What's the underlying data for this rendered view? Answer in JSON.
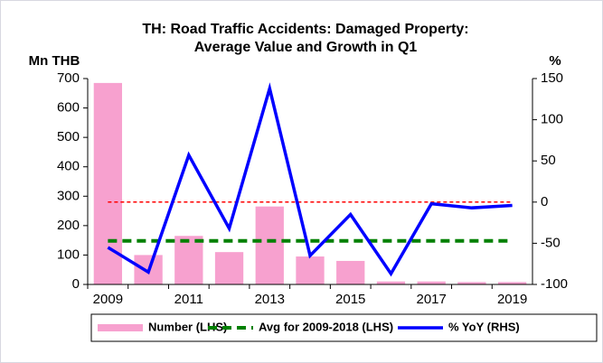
{
  "chart_data": {
    "type": "bar",
    "title": "TH: Road Traffic Accidents: Damaged Property:",
    "subtitle": "Average Value and Growth in Q1",
    "ylabel": "Mn THB",
    "y2label": "%",
    "categories": [
      "2009",
      null,
      "2011",
      null,
      "2013",
      null,
      "2015",
      null,
      "2017",
      null,
      "2019"
    ],
    "series": [
      {
        "name": "Number (LHS)",
        "type": "bar",
        "color": "#f7a1cf",
        "values": [
          685,
          100,
          165,
          110,
          265,
          95,
          80,
          10,
          10,
          8,
          8
        ]
      },
      {
        "name": "Avg for 2009-2018 (LHS)",
        "type": "line",
        "dashed": true,
        "color": "#008000",
        "values": [
          148,
          148,
          148,
          148,
          148,
          148,
          148,
          148,
          148,
          148,
          148
        ]
      },
      {
        "name": "% YoY (RHS)",
        "type": "line",
        "axis": "y2",
        "color": "#0000ff",
        "values": [
          -55,
          -85,
          57,
          -32,
          138,
          -65,
          -15,
          -87,
          -2,
          -7,
          -4
        ]
      }
    ],
    "reference_lines": [
      {
        "axis": "y2",
        "value": 0,
        "color": "#ff0000"
      }
    ],
    "ylim": [
      0,
      700
    ],
    "yticks": [
      0,
      100,
      200,
      300,
      400,
      500,
      600,
      700
    ],
    "y2lim": [
      -100,
      150
    ],
    "y2ticks": [
      -100,
      -50,
      0,
      50,
      100,
      150
    ]
  }
}
